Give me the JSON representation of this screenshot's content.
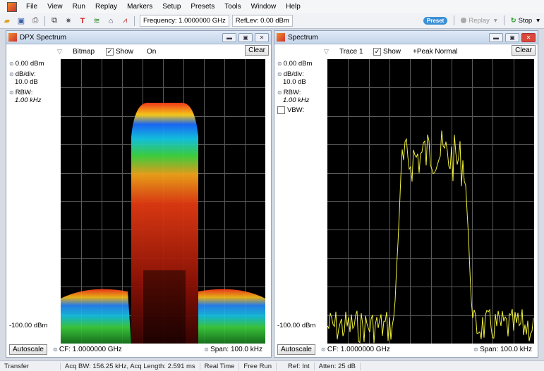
{
  "menu": [
    "File",
    "View",
    "Run",
    "Replay",
    "Markers",
    "Setup",
    "Presets",
    "Tools",
    "Window",
    "Help"
  ],
  "toolbar": {
    "frequency": "Frequency: 1.0000000 GHz",
    "reflev": "RefLev: 0.00 dBm",
    "preset": "Preset",
    "replay": "Replay",
    "stop": "Stop"
  },
  "dpx": {
    "title": "DPX Spectrum",
    "option": "Bitmap",
    "show_label": "Show",
    "show_value": "On",
    "clear": "Clear",
    "ref": "0.00 dBm",
    "dbdiv_label": "dB/div:",
    "dbdiv_value": "10.0 dB",
    "rbw_label": "RBW:",
    "rbw_value": "1.00 kHz",
    "bottom_level": "-100.00 dBm",
    "autoscale": "Autoscale",
    "cf": "CF: 1.0000000 GHz",
    "span": "Span: 100.0 kHz"
  },
  "spectrum": {
    "title": "Spectrum",
    "option": "Trace 1",
    "show_label": "Show",
    "show_value": "+Peak Normal",
    "clear": "Clear",
    "ref": "0.00 dBm",
    "dbdiv_label": "dB/div:",
    "dbdiv_value": "10.0 dB",
    "rbw_label": "RBW:",
    "rbw_value": "1.00 kHz",
    "vbw_label": "VBW:",
    "bottom_level": "-100.00 dBm",
    "autoscale": "Autoscale",
    "cf": "CF: 1.0000000 GHz",
    "span": "Span: 100.0 kHz"
  },
  "status": {
    "transfer": "Transfer",
    "acq": "Acq BW: 156.25 kHz, Acq Length: 2.591 ms",
    "realtime": "Real Time",
    "freerun": "Free Run",
    "ref": "Ref: Int",
    "atten": "Atten: 25 dB"
  },
  "colors": {
    "trace": "#f2f23c",
    "grid": "#5a5a5a"
  }
}
